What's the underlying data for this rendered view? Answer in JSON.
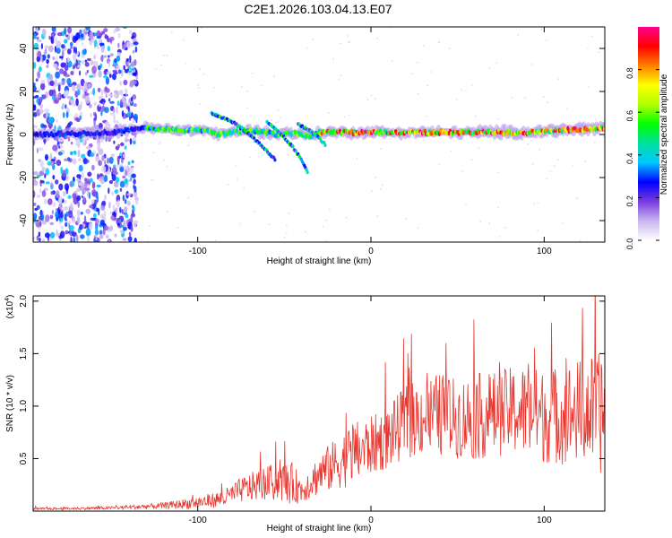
{
  "title": "C2E1.2026.103.04.13.E07",
  "colors": {
    "trace": "#e8372f",
    "colorbar": [
      "#ffffff",
      "#c9b6f0",
      "#7a3ae0",
      "#0000ff",
      "#00c8ff",
      "#00e0a0",
      "#00ff00",
      "#b0ff00",
      "#ffff00",
      "#ff8000",
      "#ff0000",
      "#ff0090"
    ]
  },
  "chart_data": [
    {
      "type": "heatmap",
      "title": "C2E1.2026.103.04.13.E07",
      "xlabel": "Height of straight line (km)",
      "ylabel": "Frequency (Hz)",
      "xlim": [
        -195,
        135
      ],
      "ylim": [
        -50,
        50
      ],
      "x_ticks": [
        -100,
        0,
        100
      ],
      "y_ticks": [
        40,
        20,
        0,
        -20,
        -40
      ],
      "noise_region_x": [
        -195,
        -135
      ],
      "ridge": {
        "x": [
          -190,
          -150,
          -130,
          -110,
          -95,
          -88,
          -80,
          -70,
          -60,
          -55,
          -48,
          -40,
          -35,
          -30,
          -20,
          0,
          30,
          60,
          90,
          110,
          135
        ],
        "freq": [
          0,
          1,
          3,
          2,
          2,
          0,
          1,
          2,
          1,
          0,
          1,
          0,
          -1,
          1,
          1,
          1,
          1,
          1,
          1,
          2,
          3
        ]
      },
      "branches": [
        {
          "x": [
            -92,
            -80,
            -70,
            -62,
            -55
          ],
          "freq": [
            10,
            6,
            0,
            -6,
            -12
          ]
        },
        {
          "x": [
            -60,
            -52,
            -45,
            -40,
            -36
          ],
          "freq": [
            6,
            0,
            -6,
            -12,
            -18
          ]
        },
        {
          "x": [
            -42,
            -32,
            -26
          ],
          "freq": [
            5,
            0,
            -5
          ]
        }
      ],
      "colorbar": {
        "label": "Normalized spectral amplitude",
        "range": [
          0,
          1
        ],
        "ticks": [
          "0.0",
          "0.2",
          "0.4",
          "0.6",
          "0.8"
        ]
      }
    },
    {
      "type": "line",
      "xlabel": "Height of straight line (km)",
      "ylabel": "SNR (10 * v/v)",
      "scale_label": "(x10",
      "scale_exp": "4",
      "scale_close": ")",
      "xlim": [
        -195,
        135
      ],
      "ylim": [
        0,
        2.05
      ],
      "x_ticks": [
        -100,
        0,
        100
      ],
      "y_ticks": [
        "0.5",
        "1.0",
        "1.5",
        "2.0"
      ],
      "series": [
        {
          "name": "SNR",
          "x": [
            -195,
            -150,
            -120,
            -100,
            -85,
            -75,
            -65,
            -55,
            -45,
            -40,
            -30,
            -20,
            -10,
            0,
            10,
            20,
            30,
            40,
            50,
            60,
            70,
            80,
            90,
            100,
            110,
            120,
            130,
            135
          ],
          "mean": [
            0.02,
            0.03,
            0.05,
            0.08,
            0.12,
            0.2,
            0.25,
            0.28,
            0.26,
            0.2,
            0.35,
            0.45,
            0.55,
            0.62,
            0.7,
            0.85,
            0.9,
            0.92,
            0.88,
            0.9,
            0.92,
            0.95,
            0.95,
            0.9,
            0.92,
            0.95,
            0.95,
            0.9
          ],
          "spread": [
            0.01,
            0.015,
            0.03,
            0.06,
            0.08,
            0.12,
            0.15,
            0.18,
            0.2,
            0.12,
            0.2,
            0.25,
            0.3,
            0.28,
            0.3,
            0.35,
            0.38,
            0.4,
            0.38,
            0.42,
            0.4,
            0.42,
            0.45,
            0.45,
            0.48,
            0.5,
            0.55,
            0.6
          ]
        }
      ]
    }
  ]
}
